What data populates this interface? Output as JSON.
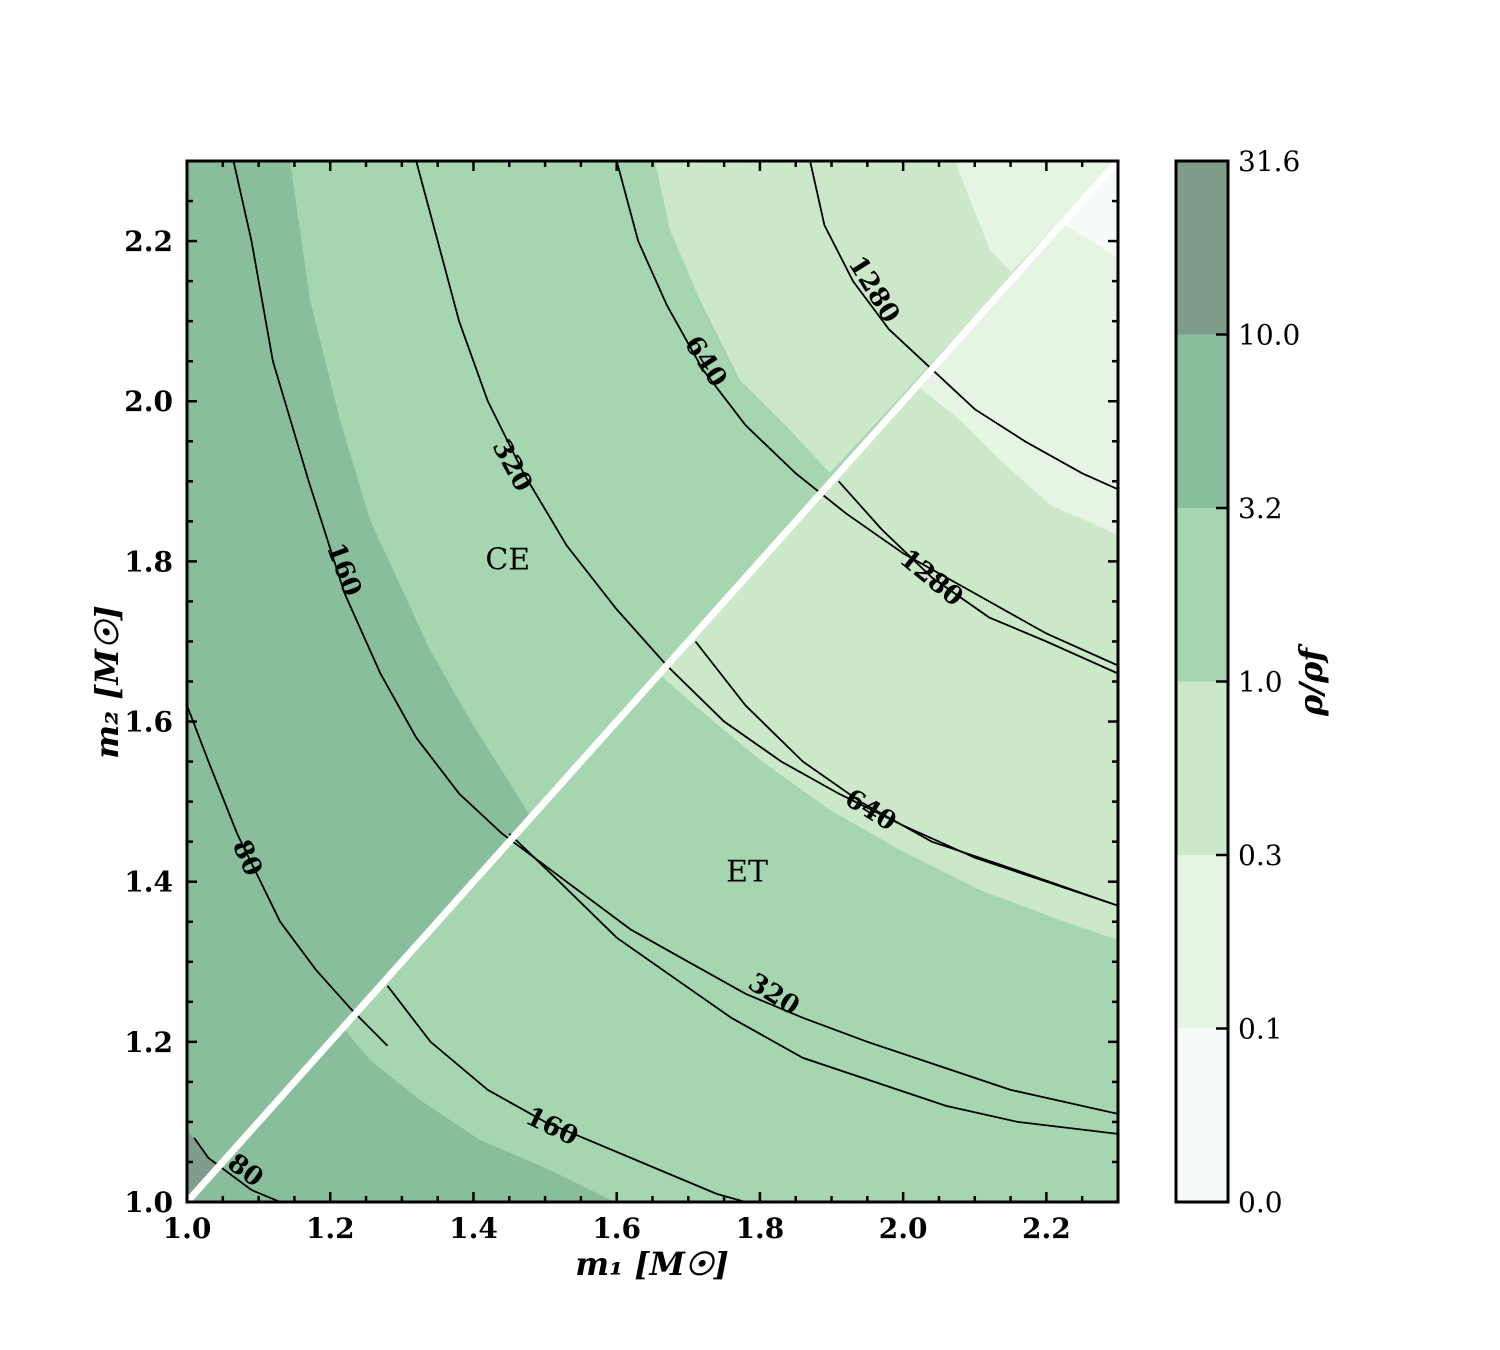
{
  "chart_data": {
    "type": "contour",
    "xlabel": "m₁ [M☉]",
    "ylabel": "m₂ [M☉]",
    "xlim": [
      1.0,
      2.3
    ],
    "ylim": [
      1.0,
      2.3
    ],
    "x_ticks": [
      "1.0",
      "1.2",
      "1.4",
      "1.6",
      "1.8",
      "2.0",
      "2.2"
    ],
    "y_ticks": [
      "1.0",
      "1.2",
      "1.4",
      "1.6",
      "1.8",
      "2.0",
      "2.2"
    ],
    "colorbar": {
      "label": "ρ/ρf",
      "ticks": [
        "0.0",
        "0.1",
        "0.3",
        "1.0",
        "3.2",
        "10.0",
        "31.6"
      ],
      "colors": [
        "#f7fbf7",
        "#e6f5e3",
        "#cbe8c9",
        "#a5d6b0",
        "#89be9c",
        "#7e9e8a"
      ]
    },
    "divider": {
      "from": [
        1.0,
        1.0
      ],
      "to": [
        2.3,
        2.3
      ],
      "color": "#ffffff"
    },
    "regions": [
      {
        "label": "CE",
        "x": 1.42,
        "y": 1.79
      },
      {
        "label": "ET",
        "x": 1.81,
        "y": 1.4
      }
    ],
    "contours": [
      {
        "level": "80",
        "segments": [
          {
            "points": [
              [
                1.0,
                1.62
              ],
              [
                1.03,
                1.55
              ],
              [
                1.07,
                1.46
              ],
              [
                1.13,
                1.35
              ],
              [
                1.18,
                1.29
              ],
              [
                1.23,
                1.24
              ],
              [
                1.28,
                1.195
              ]
            ],
            "label_at": [
              1.085,
              1.43
            ]
          },
          {
            "points": [
              [
                1.01,
                1.08
              ],
              [
                1.03,
                1.055
              ],
              [
                1.06,
                1.035
              ],
              [
                1.09,
                1.015
              ],
              [
                1.13,
                1.0
              ]
            ],
            "label_at": [
              1.082,
              1.04
            ]
          }
        ]
      },
      {
        "level": "160",
        "segments": [
          {
            "points": [
              [
                1.065,
                2.3
              ],
              [
                1.09,
                2.2
              ],
              [
                1.12,
                2.05
              ],
              [
                1.17,
                1.9
              ],
              [
                1.22,
                1.76
              ],
              [
                1.27,
                1.66
              ],
              [
                1.32,
                1.58
              ],
              [
                1.38,
                1.51
              ],
              [
                1.44,
                1.46
              ],
              [
                1.5,
                1.42
              ],
              [
                1.56,
                1.38
              ],
              [
                1.62,
                1.34
              ],
              [
                1.7,
                1.3
              ],
              [
                1.78,
                1.26
              ],
              [
                1.86,
                1.23
              ],
              [
                1.95,
                1.2
              ],
              [
                2.05,
                1.17
              ],
              [
                2.15,
                1.14
              ],
              [
                2.3,
                1.11
              ]
            ],
            "label_at": [
              1.22,
              1.79
            ]
          },
          {
            "points": [
              [
                1.28,
                1.27
              ],
              [
                1.34,
                1.2
              ],
              [
                1.42,
                1.14
              ],
              [
                1.5,
                1.1
              ],
              [
                1.58,
                1.07
              ],
              [
                1.66,
                1.04
              ],
              [
                1.74,
                1.01
              ],
              [
                1.78,
                1.0
              ]
            ],
            "label_at": [
              1.51,
              1.095
            ]
          }
        ]
      },
      {
        "level": "320",
        "segments": [
          {
            "points": [
              [
                1.32,
                2.3
              ],
              [
                1.35,
                2.2
              ],
              [
                1.38,
                2.1
              ],
              [
                1.42,
                2.0
              ],
              [
                1.47,
                1.91
              ],
              [
                1.53,
                1.82
              ],
              [
                1.6,
                1.74
              ],
              [
                1.67,
                1.67
              ],
              [
                1.75,
                1.6
              ],
              [
                1.83,
                1.55
              ],
              [
                1.91,
                1.51
              ],
              [
                2.0,
                1.47
              ],
              [
                2.1,
                1.43
              ],
              [
                2.2,
                1.4
              ],
              [
                2.3,
                1.37
              ]
            ],
            "label_at": [
              1.455,
              1.92
            ]
          },
          {
            "points": [
              [
                1.45,
                1.46
              ],
              [
                1.52,
                1.4
              ],
              [
                1.6,
                1.33
              ],
              [
                1.68,
                1.28
              ],
              [
                1.76,
                1.23
              ],
              [
                1.86,
                1.18
              ],
              [
                1.96,
                1.15
              ],
              [
                2.06,
                1.12
              ],
              [
                2.16,
                1.1
              ],
              [
                2.3,
                1.085
              ]
            ],
            "label_at": [
              1.82,
              1.26
            ]
          }
        ]
      },
      {
        "level": "640",
        "segments": [
          {
            "points": [
              [
                1.6,
                2.3
              ],
              [
                1.63,
                2.2
              ],
              [
                1.67,
                2.12
              ],
              [
                1.72,
                2.04
              ],
              [
                1.78,
                1.97
              ],
              [
                1.85,
                1.91
              ],
              [
                1.92,
                1.86
              ],
              [
                2.0,
                1.81
              ],
              [
                2.1,
                1.76
              ],
              [
                2.2,
                1.71
              ],
              [
                2.3,
                1.67
              ]
            ],
            "label_at": [
              1.725,
              2.05
            ]
          },
          {
            "points": [
              [
                1.71,
                1.7
              ],
              [
                1.78,
                1.62
              ],
              [
                1.86,
                1.55
              ],
              [
                1.94,
                1.5
              ],
              [
                2.04,
                1.45
              ],
              [
                2.14,
                1.42
              ],
              [
                2.3,
                1.37
              ]
            ],
            "label_at": [
              1.955,
              1.49
            ]
          }
        ]
      },
      {
        "level": "1280",
        "segments": [
          {
            "points": [
              [
                1.87,
                2.3
              ],
              [
                1.89,
                2.22
              ],
              [
                1.93,
                2.15
              ],
              [
                1.98,
                2.09
              ],
              [
                2.04,
                2.04
              ],
              [
                2.1,
                1.99
              ],
              [
                2.17,
                1.95
              ],
              [
                2.25,
                1.91
              ],
              [
                2.3,
                1.89
              ]
            ],
            "label_at": [
              1.96,
              2.14
            ]
          },
          {
            "points": [
              [
                1.91,
                1.9
              ],
              [
                1.97,
                1.84
              ],
              [
                2.04,
                1.78
              ],
              [
                2.12,
                1.73
              ],
              [
                2.2,
                1.7
              ],
              [
                2.3,
                1.66
              ]
            ],
            "label_at": [
              2.04,
              1.78
            ]
          }
        ]
      }
    ]
  }
}
